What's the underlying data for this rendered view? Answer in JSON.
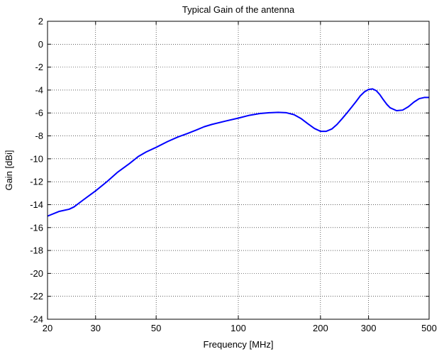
{
  "chart_data": {
    "type": "line",
    "title": "Typical Gain of the antenna",
    "xlabel": "Frequency [MHz]",
    "ylabel": "Gain [dBi]",
    "x_scale": "log",
    "xlim": [
      20,
      500
    ],
    "ylim": [
      -24,
      2
    ],
    "x_ticks": [
      20,
      30,
      50,
      100,
      200,
      300,
      500
    ],
    "x_tick_labels": [
      "20",
      "30",
      "50",
      "100",
      "200",
      "300",
      "500"
    ],
    "y_ticks": [
      2,
      0,
      -2,
      -4,
      -6,
      -8,
      -10,
      -12,
      -14,
      -16,
      -18,
      -20,
      -22,
      -24
    ],
    "y_tick_labels": [
      "2",
      "0",
      "-2",
      "-4",
      "-6",
      "-8",
      "-10",
      "-12",
      "-14",
      "-16",
      "-18",
      "-20",
      "-22",
      "-24"
    ],
    "grid": true,
    "line_color": "#0000ff",
    "series": [
      {
        "x": [
          20,
          22,
          24,
          25,
          27,
          30,
          33,
          36,
          40,
          43,
          46,
          50,
          55,
          60,
          65,
          70,
          75,
          80,
          90,
          100,
          110,
          120,
          130,
          140,
          150,
          160,
          170,
          180,
          190,
          200,
          210,
          220,
          230,
          240,
          250,
          260,
          270,
          280,
          290,
          300,
          310,
          320,
          330,
          340,
          350,
          360,
          380,
          400,
          420,
          440,
          460,
          480,
          500
        ],
        "y": [
          -15.0,
          -14.6,
          -14.4,
          -14.2,
          -13.6,
          -12.8,
          -12.0,
          -11.2,
          -10.4,
          -9.8,
          -9.4,
          -9.0,
          -8.5,
          -8.1,
          -7.8,
          -7.5,
          -7.2,
          -7.0,
          -6.7,
          -6.45,
          -6.2,
          -6.05,
          -5.98,
          -5.95,
          -5.98,
          -6.15,
          -6.5,
          -6.95,
          -7.35,
          -7.6,
          -7.6,
          -7.4,
          -7.0,
          -6.5,
          -6.0,
          -5.5,
          -5.0,
          -4.5,
          -4.15,
          -3.95,
          -3.9,
          -4.05,
          -4.4,
          -4.85,
          -5.25,
          -5.55,
          -5.8,
          -5.75,
          -5.45,
          -5.05,
          -4.75,
          -4.65,
          -4.65
        ]
      }
    ]
  }
}
